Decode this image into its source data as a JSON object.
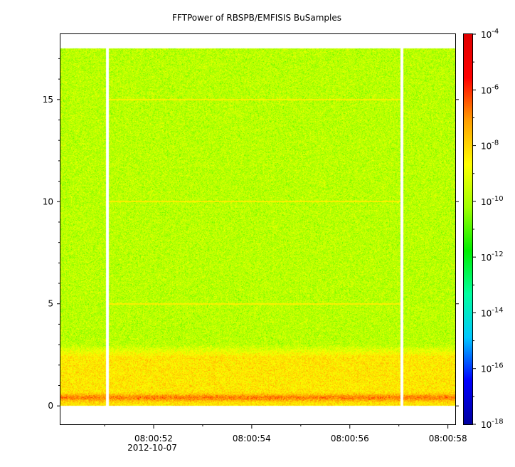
{
  "chart_data": {
    "type": "heatmap",
    "title": "FFTPower of RBSPB/EMFISIS  BuSamples",
    "xlabel": "",
    "ylabel": "",
    "x_axis": {
      "range": [
        "08:00:50.100",
        "08:00:58.150"
      ],
      "ticks": [
        "08:00:52",
        "08:00:54",
        "08:00:56",
        "08:00:58"
      ],
      "date_label": "2012-10-07"
    },
    "y_axis": {
      "range": [
        -0.9,
        18.2
      ],
      "ticks": [
        0,
        5,
        10,
        15
      ],
      "data_extent": [
        0,
        17.5
      ]
    },
    "colorbar": {
      "scale": "log",
      "range": [
        1e-18,
        0.0001
      ],
      "ticks": [
        {
          "base": "10",
          "exp": "-4"
        },
        {
          "base": "10",
          "exp": "-6"
        },
        {
          "base": "10",
          "exp": "-8"
        },
        {
          "base": "10",
          "exp": "-10"
        },
        {
          "base": "10",
          "exp": "-12"
        },
        {
          "base": "10",
          "exp": "-14"
        },
        {
          "base": "10",
          "exp": "-16"
        },
        {
          "base": "10",
          "exp": "-18"
        }
      ],
      "colors": [
        "#0000a0",
        "#0000ff",
        "#00c8ff",
        "#00ffa0",
        "#00ee00",
        "#a0ff00",
        "#ffff00",
        "#ffa000",
        "#ff0000",
        "#e00000"
      ]
    },
    "gaps": [
      "08:00:51.05",
      "08:00:57.05"
    ],
    "features": {
      "noise_floor_log10": -9.8,
      "low_frequency_enhancement": {
        "below": 3,
        "log10": -8.3
      },
      "peak_band": {
        "center": 0.4,
        "log10": -6.8
      },
      "horizontal_lines": [
        {
          "y": 5,
          "log10": -8.4
        },
        {
          "y": 10,
          "log10": -8.4
        },
        {
          "y": 15,
          "log10": -8.4
        }
      ]
    }
  }
}
